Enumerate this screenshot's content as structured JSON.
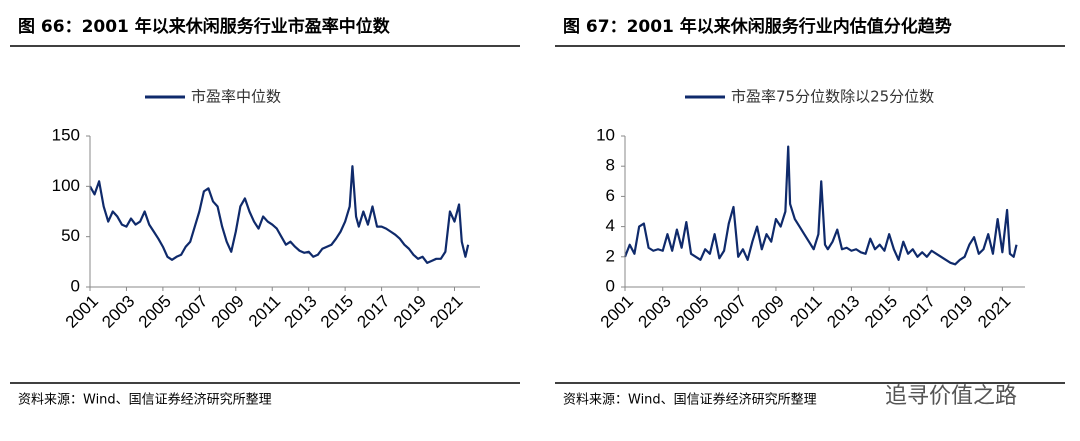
{
  "chart_data": [
    {
      "type": "line",
      "title": "图 66：2001 年以来休闲服务行业市盈率中位数",
      "source": "资料来源：Wind、国信证券经济研究所整理",
      "xlim": [
        2001,
        2022.4
      ],
      "xticks": [
        2001,
        2003,
        2005,
        2007,
        2009,
        2011,
        2013,
        2015,
        2017,
        2019,
        2021
      ],
      "ylim": [
        0,
        150
      ],
      "yticks": [
        0,
        50,
        100,
        150
      ],
      "grid": false,
      "legend": "top",
      "x": [
        2001.0,
        2001.25,
        2001.5,
        2001.75,
        2002.0,
        2002.25,
        2002.5,
        2002.75,
        2003.0,
        2003.25,
        2003.5,
        2003.75,
        2004.0,
        2004.25,
        2004.5,
        2004.75,
        2005.0,
        2005.25,
        2005.5,
        2005.75,
        2006.0,
        2006.25,
        2006.5,
        2006.75,
        2007.0,
        2007.25,
        2007.5,
        2007.75,
        2008.0,
        2008.25,
        2008.5,
        2008.75,
        2009.0,
        2009.25,
        2009.5,
        2009.75,
        2010.0,
        2010.25,
        2010.5,
        2010.75,
        2011.0,
        2011.25,
        2011.5,
        2011.75,
        2012.0,
        2012.25,
        2012.5,
        2012.75,
        2013.0,
        2013.25,
        2013.5,
        2013.75,
        2014.0,
        2014.25,
        2014.5,
        2014.75,
        2015.0,
        2015.25,
        2015.4,
        2015.6,
        2015.75,
        2016.0,
        2016.25,
        2016.5,
        2016.75,
        2017.0,
        2017.25,
        2017.5,
        2017.75,
        2018.0,
        2018.25,
        2018.5,
        2018.75,
        2019.0,
        2019.25,
        2019.5,
        2019.75,
        2020.0,
        2020.25,
        2020.5,
        2020.75,
        2021.0,
        2021.25,
        2021.4,
        2021.6,
        2021.75
      ],
      "series": [
        {
          "name": "市盈率中位数",
          "color": "#0f2a6b",
          "values": [
            100,
            92,
            105,
            80,
            65,
            75,
            70,
            62,
            60,
            68,
            62,
            65,
            75,
            62,
            55,
            48,
            40,
            30,
            27,
            30,
            32,
            40,
            45,
            60,
            75,
            95,
            98,
            85,
            80,
            60,
            45,
            35,
            55,
            80,
            88,
            75,
            65,
            58,
            70,
            65,
            62,
            58,
            50,
            42,
            45,
            40,
            36,
            34,
            35,
            30,
            32,
            38,
            40,
            42,
            48,
            55,
            65,
            80,
            120,
            70,
            60,
            75,
            62,
            80,
            60,
            60,
            58,
            55,
            52,
            48,
            42,
            38,
            32,
            28,
            30,
            24,
            26,
            28,
            28,
            35,
            75,
            65,
            82,
            45,
            30,
            42
          ]
        }
      ]
    },
    {
      "type": "line",
      "title": "图 67：2001 年以来休闲服务行业内估值分化趋势",
      "source": "资料来源：Wind、国信证券经济研究所整理",
      "xlim": [
        2001,
        2022.2
      ],
      "xticks": [
        2001,
        2003,
        2005,
        2007,
        2009,
        2011,
        2013,
        2015,
        2017,
        2019,
        2021
      ],
      "ylim": [
        0,
        10
      ],
      "yticks": [
        0,
        2,
        4,
        6,
        8,
        10
      ],
      "grid": false,
      "legend": "top",
      "x": [
        2001.0,
        2001.25,
        2001.5,
        2001.75,
        2002.0,
        2002.25,
        2002.5,
        2002.75,
        2003.0,
        2003.25,
        2003.5,
        2003.75,
        2004.0,
        2004.25,
        2004.5,
        2004.75,
        2005.0,
        2005.25,
        2005.5,
        2005.75,
        2006.0,
        2006.25,
        2006.5,
        2006.75,
        2007.0,
        2007.25,
        2007.5,
        2007.75,
        2008.0,
        2008.25,
        2008.5,
        2008.75,
        2009.0,
        2009.25,
        2009.5,
        2009.65,
        2009.75,
        2010.0,
        2010.25,
        2010.5,
        2010.75,
        2011.0,
        2011.25,
        2011.4,
        2011.6,
        2011.75,
        2012.0,
        2012.25,
        2012.5,
        2012.75,
        2013.0,
        2013.25,
        2013.5,
        2013.75,
        2014.0,
        2014.25,
        2014.5,
        2014.75,
        2015.0,
        2015.25,
        2015.5,
        2015.75,
        2016.0,
        2016.25,
        2016.5,
        2016.75,
        2017.0,
        2017.25,
        2017.5,
        2017.75,
        2018.0,
        2018.25,
        2018.5,
        2018.75,
        2019.0,
        2019.25,
        2019.5,
        2019.75,
        2020.0,
        2020.25,
        2020.5,
        2020.75,
        2021.0,
        2021.25,
        2021.4,
        2021.6,
        2021.75
      ],
      "series": [
        {
          "name": "市盈率75分位数除以25分位数",
          "color": "#0f2a6b",
          "values": [
            2.0,
            2.8,
            2.2,
            4.0,
            4.2,
            2.6,
            2.4,
            2.5,
            2.4,
            3.5,
            2.4,
            3.8,
            2.6,
            4.3,
            2.2,
            2.0,
            1.8,
            2.5,
            2.2,
            3.5,
            1.9,
            2.4,
            4.2,
            5.3,
            2.0,
            2.5,
            1.8,
            3.0,
            4.0,
            2.5,
            3.5,
            3.0,
            4.5,
            4.0,
            5.0,
            9.3,
            5.5,
            4.5,
            4.0,
            3.5,
            3.0,
            2.5,
            3.5,
            7.0,
            2.8,
            2.5,
            3.0,
            3.8,
            2.5,
            2.6,
            2.4,
            2.5,
            2.3,
            2.2,
            3.2,
            2.5,
            2.8,
            2.4,
            3.5,
            2.5,
            1.8,
            3.0,
            2.2,
            2.5,
            2.0,
            2.3,
            2.0,
            2.4,
            2.2,
            2.0,
            1.8,
            1.6,
            1.5,
            1.8,
            2.0,
            2.8,
            3.3,
            2.2,
            2.5,
            3.5,
            2.2,
            4.5,
            2.3,
            5.1,
            2.2,
            2.0,
            2.8
          ]
        }
      ]
    }
  ],
  "watermark": "追寻价值之路"
}
